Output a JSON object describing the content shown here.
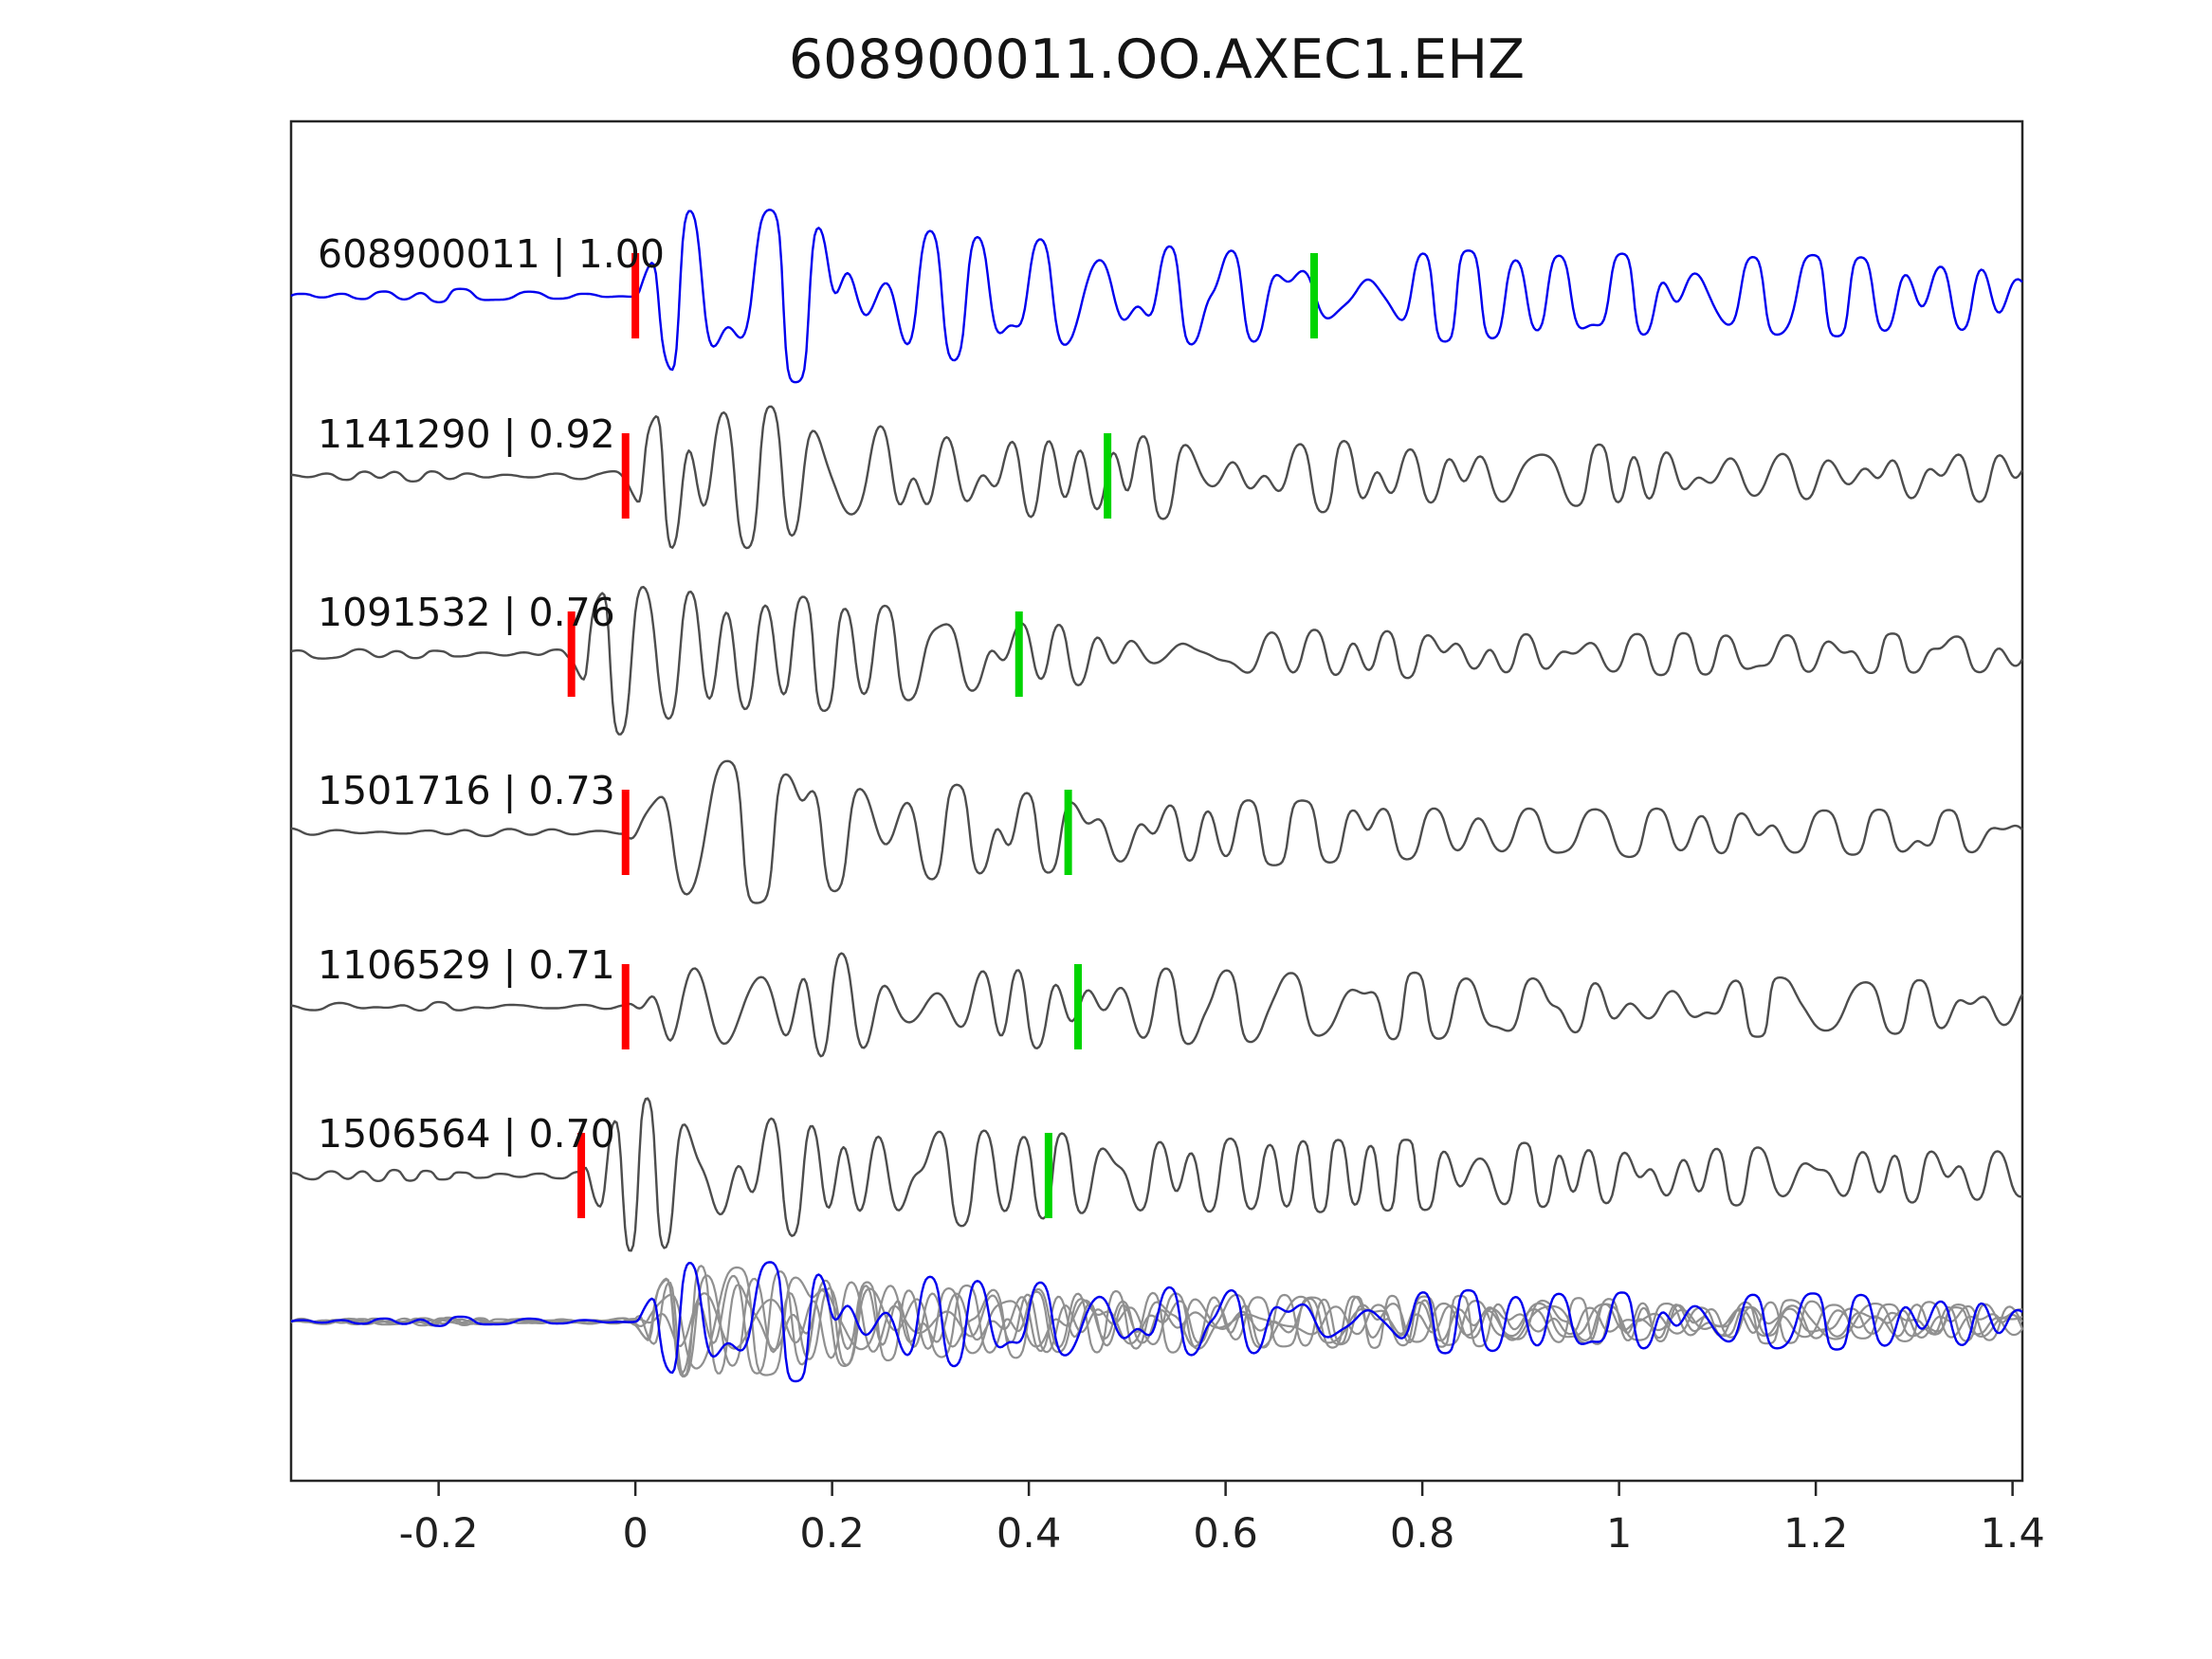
{
  "chart_data": {
    "type": "line",
    "title": "608900011.OO.AXEC1.EHZ",
    "xlabel": "",
    "ylabel": "",
    "xlim": [
      -0.35,
      1.41
    ],
    "x_ticks": [
      -0.2,
      0,
      0.2,
      0.4,
      0.6,
      0.8,
      1,
      1.2,
      1.4
    ],
    "x_tick_labels": [
      "-0.2",
      "0",
      "0.2",
      "0.4",
      "0.6",
      "0.8",
      "1",
      "1.2",
      "1.4"
    ],
    "grid": false,
    "legend": "none",
    "traces": [
      {
        "label": "608900011 | 1.00",
        "event_id": "608900011",
        "correlation": 1.0,
        "color": "#0000ee",
        "pick_red_x": 0.0,
        "pick_green_x": 0.69
      },
      {
        "label": "1141290 | 0.92",
        "event_id": "1141290",
        "correlation": 0.92,
        "color": "#4d4d4d",
        "pick_red_x": -0.01,
        "pick_green_x": 0.48
      },
      {
        "label": "1091532 | 0.76",
        "event_id": "1091532",
        "correlation": 0.76,
        "color": "#4d4d4d",
        "pick_red_x": -0.065,
        "pick_green_x": 0.39
      },
      {
        "label": "1501716 | 0.73",
        "event_id": "1501716",
        "correlation": 0.73,
        "color": "#4d4d4d",
        "pick_red_x": -0.01,
        "pick_green_x": 0.44
      },
      {
        "label": "1106529 | 0.71",
        "event_id": "1106529",
        "correlation": 0.71,
        "color": "#4d4d4d",
        "pick_red_x": -0.01,
        "pick_green_x": 0.45
      },
      {
        "label": "1506564 | 0.70",
        "event_id": "1506564",
        "correlation": 0.7,
        "color": "#4d4d4d",
        "pick_red_x": -0.055,
        "pick_green_x": 0.42
      }
    ],
    "overlay_row": {
      "description": "all six waveforms overlaid, aligned on red picks",
      "gray_color": "#909090",
      "highlight_color": "#0000ee"
    },
    "marker_colors": {
      "red_pick": "#ff0000",
      "green_pick": "#00d400"
    }
  }
}
